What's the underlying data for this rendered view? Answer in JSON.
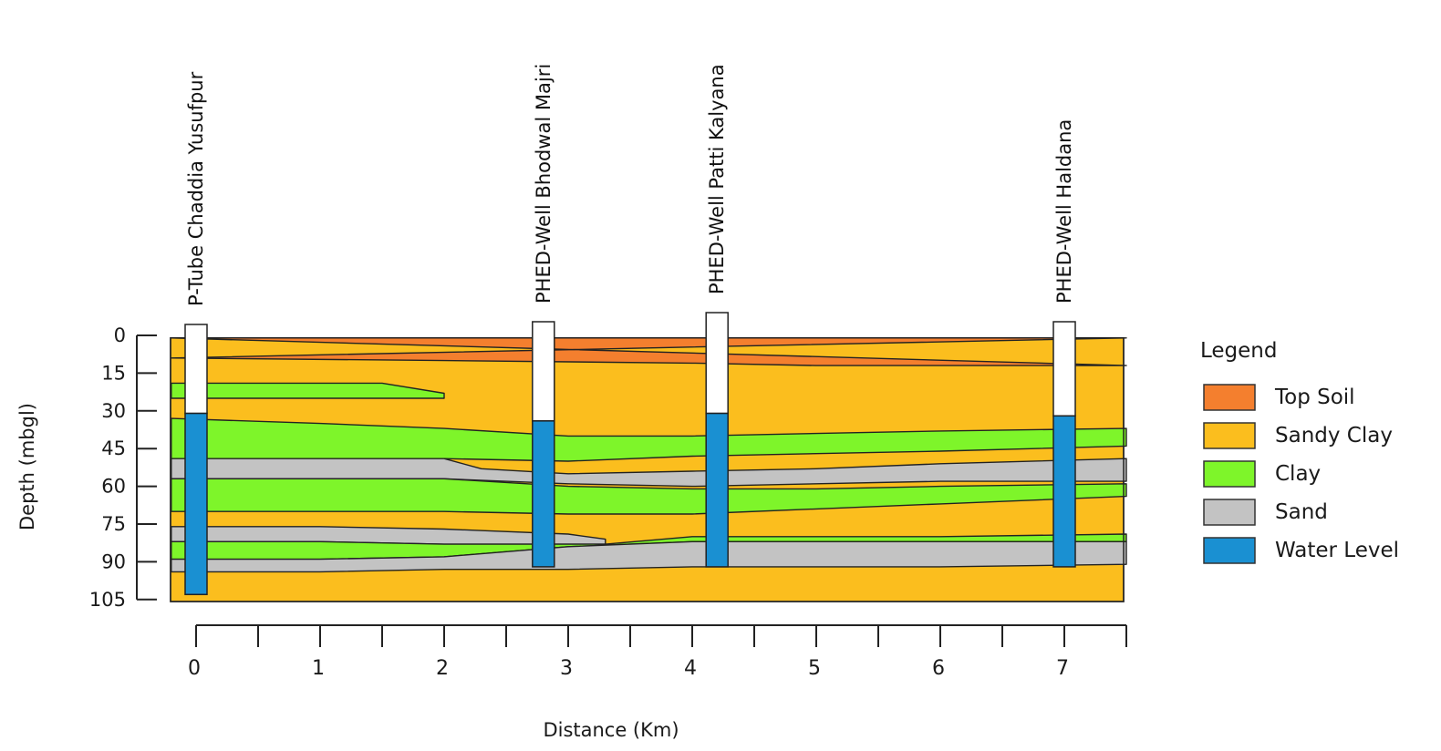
{
  "chart_data": {
    "type": "geological-cross-section",
    "xlabel": "Distance (Km)",
    "ylabel": "Depth (mbgl)",
    "x_ticks": [
      "0",
      "1",
      "2",
      "3",
      "4",
      "5",
      "6",
      "7"
    ],
    "y_ticks": [
      "0",
      "15",
      "30",
      "45",
      "60",
      "75",
      "90",
      "105"
    ],
    "xlim": [
      -0.2,
      7.5
    ],
    "ylim": [
      0,
      105
    ],
    "colors": {
      "top_soil": "#f47f2e",
      "sandy_clay": "#fbbe1e",
      "clay": "#7ef52a",
      "sand": "#c3c3c3",
      "water_level": "#1a90d2"
    },
    "legend": {
      "title": "Legend",
      "items": [
        {
          "key": "top_soil",
          "label": "Top Soil"
        },
        {
          "key": "sandy_clay",
          "label": "Sandy Clay"
        },
        {
          "key": "clay",
          "label": "Clay"
        },
        {
          "key": "sand",
          "label": "Sand"
        },
        {
          "key": "water_level",
          "label": "Water Level"
        }
      ]
    },
    "wells": [
      {
        "name": "P-Tube Chaddia Yusufpur",
        "distance_km": 0.0,
        "water_level_mbgl": 31,
        "depth_mbgl": 103
      },
      {
        "name": "PHED-Well Bhodwal Majri",
        "distance_km": 2.8,
        "water_level_mbgl": 34,
        "depth_mbgl": 92
      },
      {
        "name": "PHED-Well Patti Kalyana",
        "distance_km": 4.2,
        "water_level_mbgl": 31,
        "depth_mbgl": 92
      },
      {
        "name": "PHED-Well Haldana",
        "distance_km": 7.0,
        "water_level_mbgl": 32,
        "depth_mbgl": 92
      }
    ],
    "layers": [
      {
        "lithology": "top_soil",
        "top": [
          [
            -0.2,
            1
          ],
          [
            7.5,
            1
          ]
        ],
        "bottom": [
          [
            -0.2,
            9
          ],
          [
            2,
            10
          ],
          [
            4,
            11
          ],
          [
            5,
            12
          ],
          [
            7.5,
            12
          ]
        ]
      },
      {
        "lithology": "clay",
        "top": [
          [
            -0.2,
            19
          ],
          [
            1.5,
            19
          ],
          [
            2,
            23
          ]
        ],
        "bottom": [
          [
            2,
            25
          ],
          [
            1,
            25
          ],
          [
            -0.2,
            25
          ]
        ]
      },
      {
        "lithology": "clay",
        "top": [
          [
            -0.2,
            33
          ],
          [
            1,
            35
          ],
          [
            2,
            37
          ],
          [
            3,
            40
          ],
          [
            4,
            40
          ],
          [
            5,
            39
          ],
          [
            6,
            38
          ],
          [
            7.5,
            37
          ]
        ],
        "bottom": [
          [
            7.5,
            44
          ],
          [
            6,
            46
          ],
          [
            5,
            47
          ],
          [
            4,
            48
          ],
          [
            3,
            50
          ],
          [
            2,
            49
          ],
          [
            1,
            49
          ],
          [
            -0.2,
            49
          ]
        ]
      },
      {
        "lithology": "sand",
        "top": [
          [
            -0.2,
            49
          ],
          [
            1,
            49
          ],
          [
            2,
            49
          ],
          [
            2.3,
            53
          ],
          [
            3,
            55
          ],
          [
            4,
            54
          ],
          [
            5,
            53
          ],
          [
            6,
            51
          ],
          [
            7.5,
            49
          ]
        ],
        "bottom": [
          [
            7.5,
            58
          ],
          [
            6,
            58
          ],
          [
            5,
            59
          ],
          [
            4,
            60
          ],
          [
            3,
            59
          ],
          [
            2,
            57
          ],
          [
            1,
            57
          ],
          [
            -0.2,
            57
          ]
        ]
      },
      {
        "lithology": "clay",
        "top": [
          [
            -0.2,
            57
          ],
          [
            1,
            57
          ],
          [
            2,
            57
          ],
          [
            3,
            60
          ],
          [
            4,
            61
          ],
          [
            5,
            61
          ],
          [
            6,
            60
          ],
          [
            7.5,
            59
          ]
        ],
        "bottom": [
          [
            7.5,
            64
          ],
          [
            6,
            67
          ],
          [
            5,
            69
          ],
          [
            4,
            71
          ],
          [
            3,
            71
          ],
          [
            2,
            70
          ],
          [
            1,
            70
          ],
          [
            -0.2,
            70
          ]
        ]
      },
      {
        "lithology": "sand",
        "top": [
          [
            -0.2,
            76
          ],
          [
            1,
            76
          ],
          [
            2,
            77
          ],
          [
            3,
            79
          ],
          [
            3.3,
            81
          ]
        ],
        "bottom": [
          [
            3.3,
            83
          ],
          [
            3,
            83
          ],
          [
            2,
            83
          ],
          [
            1,
            82
          ],
          [
            -0.2,
            82
          ]
        ]
      },
      {
        "lithology": "clay",
        "top": [
          [
            -0.2,
            82
          ],
          [
            1,
            82
          ],
          [
            2,
            83
          ],
          [
            3.3,
            83
          ],
          [
            4,
            80
          ],
          [
            5,
            80
          ],
          [
            6,
            80
          ],
          [
            7.5,
            79
          ]
        ],
        "bottom": [
          [
            7.5,
            82
          ],
          [
            6,
            82
          ],
          [
            5,
            82
          ],
          [
            4,
            82
          ],
          [
            3,
            84
          ],
          [
            2,
            88
          ],
          [
            1,
            89
          ],
          [
            -0.2,
            89
          ]
        ]
      },
      {
        "lithology": "sand",
        "top": [
          [
            -0.2,
            89
          ],
          [
            1,
            89
          ],
          [
            2,
            88
          ],
          [
            3,
            84
          ],
          [
            4,
            82
          ],
          [
            5,
            82
          ],
          [
            6,
            82
          ],
          [
            7.5,
            82
          ]
        ],
        "bottom": [
          [
            7.5,
            91
          ],
          [
            6,
            92
          ],
          [
            5,
            92
          ],
          [
            4,
            92
          ],
          [
            3,
            93
          ],
          [
            2,
            93
          ],
          [
            1,
            94
          ],
          [
            -0.2,
            94
          ]
        ]
      }
    ]
  }
}
